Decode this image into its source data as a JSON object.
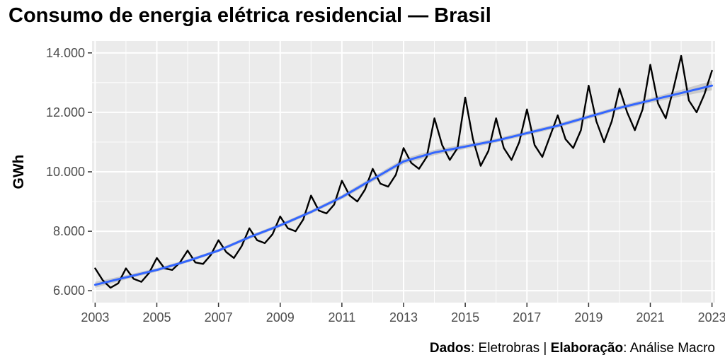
{
  "chart_data": {
    "type": "line",
    "title": "Consumo de energia elétrica residencial — Brasil",
    "xlabel": "",
    "ylabel": "GWh",
    "xlim": [
      2002.9,
      2023.1
    ],
    "ylim": [
      5600,
      14400
    ],
    "x_ticks": [
      2003,
      2005,
      2007,
      2009,
      2011,
      2013,
      2015,
      2017,
      2019,
      2021,
      2023
    ],
    "x_tick_labels": [
      "2003",
      "2005",
      "2007",
      "2009",
      "2011",
      "2013",
      "2015",
      "2017",
      "2019",
      "2021",
      "2023"
    ],
    "y_ticks": [
      6000,
      8000,
      10000,
      12000,
      14000
    ],
    "y_tick_labels": [
      "6.000",
      "8.000",
      "10.000",
      "12.000",
      "14.000"
    ],
    "grid": true,
    "series": [
      {
        "kind": "line",
        "color": "#000000",
        "x": [
          2003.0,
          2003.25,
          2003.5,
          2003.75,
          2004.0,
          2004.25,
          2004.5,
          2004.75,
          2005.0,
          2005.25,
          2005.5,
          2005.75,
          2006.0,
          2006.25,
          2006.5,
          2006.75,
          2007.0,
          2007.25,
          2007.5,
          2007.75,
          2008.0,
          2008.25,
          2008.5,
          2008.75,
          2009.0,
          2009.25,
          2009.5,
          2009.75,
          2010.0,
          2010.25,
          2010.5,
          2010.75,
          2011.0,
          2011.25,
          2011.5,
          2011.75,
          2012.0,
          2012.25,
          2012.5,
          2012.75,
          2013.0,
          2013.25,
          2013.5,
          2013.75,
          2014.0,
          2014.25,
          2014.5,
          2014.75,
          2015.0,
          2015.25,
          2015.5,
          2015.75,
          2016.0,
          2016.25,
          2016.5,
          2016.75,
          2017.0,
          2017.25,
          2017.5,
          2017.75,
          2018.0,
          2018.25,
          2018.5,
          2018.75,
          2019.0,
          2019.25,
          2019.5,
          2019.75,
          2020.0,
          2020.25,
          2020.5,
          2020.75,
          2021.0,
          2021.25,
          2021.5,
          2021.75,
          2022.0,
          2022.25,
          2022.5,
          2022.75,
          2023.0
        ],
        "values": [
          6750,
          6350,
          6100,
          6250,
          6750,
          6400,
          6300,
          6600,
          7100,
          6750,
          6700,
          6950,
          7350,
          6950,
          6900,
          7200,
          7700,
          7300,
          7100,
          7500,
          8100,
          7700,
          7600,
          7900,
          8500,
          8100,
          8000,
          8400,
          9200,
          8700,
          8600,
          8900,
          9700,
          9200,
          9000,
          9400,
          10100,
          9600,
          9500,
          9900,
          10800,
          10300,
          10100,
          10500,
          11800,
          10900,
          10400,
          10800,
          12500,
          11100,
          10200,
          10700,
          11800,
          10800,
          10400,
          11000,
          12100,
          10900,
          10500,
          11200,
          11900,
          11100,
          10800,
          11400,
          12900,
          11700,
          11000,
          11700,
          12800,
          12000,
          11400,
          12100,
          13600,
          12300,
          11800,
          12800,
          13900,
          12400,
          12000,
          12600,
          13400
        ]
      },
      {
        "kind": "smooth",
        "color": "#3366ff",
        "band_color": "#999999",
        "x": [
          2003,
          2004,
          2005,
          2006,
          2007,
          2008,
          2009,
          2010,
          2011,
          2012,
          2013,
          2014,
          2015,
          2016,
          2017,
          2018,
          2019,
          2020,
          2021,
          2022,
          2023
        ],
        "values": [
          6200,
          6450,
          6700,
          7000,
          7350,
          7800,
          8200,
          8650,
          9150,
          9750,
          10350,
          10650,
          10850,
          11050,
          11300,
          11550,
          11850,
          12150,
          12400,
          12650,
          12900
        ],
        "lower": [
          6100,
          6380,
          6640,
          6950,
          7300,
          7740,
          8140,
          8590,
          9080,
          9670,
          10260,
          10560,
          10770,
          10980,
          11230,
          11480,
          11780,
          12080,
          12320,
          12540,
          12740
        ],
        "upper": [
          6300,
          6520,
          6760,
          7050,
          7400,
          7860,
          8260,
          8710,
          9220,
          9830,
          10440,
          10740,
          10930,
          11120,
          11370,
          11620,
          11920,
          12220,
          12480,
          12760,
          13060
        ]
      }
    ]
  },
  "caption": {
    "dados_label": "Dados",
    "dados_value": ": Eletrobras | ",
    "elaboracao_label": "Elaboração",
    "elaboracao_value": ": Análise Macro"
  }
}
